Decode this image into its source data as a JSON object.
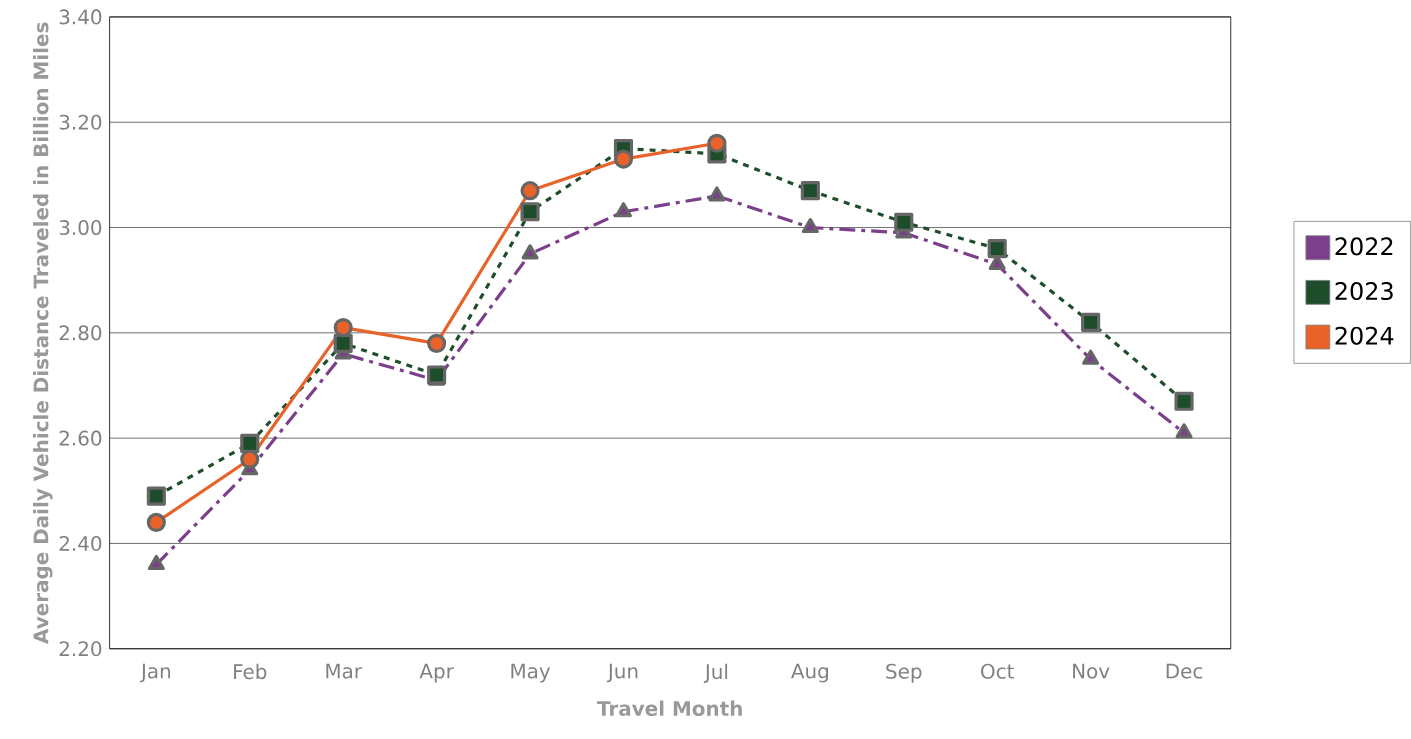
{
  "chart_data": {
    "type": "line",
    "xlabel": "Travel Month",
    "ylabel": "Average Daily Vehicle Distance Traveled in Billion Miles",
    "categories": [
      "Jan",
      "Feb",
      "Mar",
      "Apr",
      "May",
      "Jun",
      "Jul",
      "Aug",
      "Sep",
      "Oct",
      "Nov",
      "Dec"
    ],
    "series": [
      {
        "name": "2022",
        "color": "#7b3f8c",
        "marker": "triangle",
        "line_style": "dashdot",
        "values": [
          2.36,
          2.54,
          2.76,
          2.71,
          2.95,
          3.03,
          3.06,
          3.0,
          2.99,
          2.93,
          2.75,
          2.61
        ]
      },
      {
        "name": "2023",
        "color": "#1e4d2b",
        "marker": "square",
        "line_style": "dashed",
        "values": [
          2.49,
          2.59,
          2.78,
          2.72,
          3.03,
          3.15,
          3.14,
          3.07,
          3.01,
          2.96,
          2.82,
          2.67
        ]
      },
      {
        "name": "2024",
        "color": "#e8622a",
        "marker": "circle",
        "line_style": "solid",
        "values": [
          2.44,
          2.56,
          2.81,
          2.78,
          3.07,
          3.13,
          3.16,
          null,
          null,
          null,
          null,
          null
        ]
      }
    ],
    "ylim": [
      2.2,
      3.4
    ],
    "yticks": [
      {
        "value": 2.2,
        "label": "2.20"
      },
      {
        "value": 2.4,
        "label": "2.40"
      },
      {
        "value": 2.6,
        "label": "2.60"
      },
      {
        "value": 2.8,
        "label": "2.80"
      },
      {
        "value": 3.0,
        "label": "3.00"
      },
      {
        "value": 3.2,
        "label": "3.20"
      },
      {
        "value": 3.4,
        "label": "3.40"
      }
    ],
    "grid": "y",
    "legend": "right"
  }
}
